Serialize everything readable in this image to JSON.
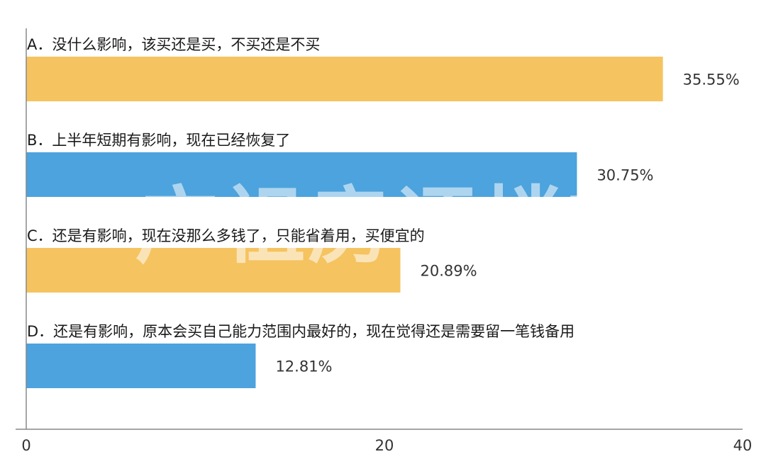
{
  "chart_data": {
    "type": "bar",
    "orientation": "horizontal",
    "categories": [
      "A．没什么影响，该买还是买，不买还是不买",
      "B．上半年短期有影响，现在已经恢复了",
      "C．还是有影响，现在没那么多钱了，只能省着用，买便宜的",
      "D．还是有影响，原本会买自己能力范围内最好的，现在觉得还是需要留一笔钱备用"
    ],
    "values": [
      35.55,
      30.75,
      20.89,
      12.81
    ],
    "value_labels": [
      "35.55%",
      "30.75%",
      "20.89%",
      "12.81%"
    ],
    "bar_colors": [
      "#f5c35f",
      "#4ca3dd",
      "#f5c35f",
      "#4ca3dd"
    ],
    "xlim": [
      0,
      40
    ],
    "x_ticks": [
      0,
      20,
      40
    ],
    "x_tick_labels": [
      "0",
      "20",
      "40"
    ],
    "grid": false,
    "legend": "none",
    "title": "",
    "xlabel": "",
    "ylabel": ""
  },
  "watermark": "广祖房评楼市"
}
